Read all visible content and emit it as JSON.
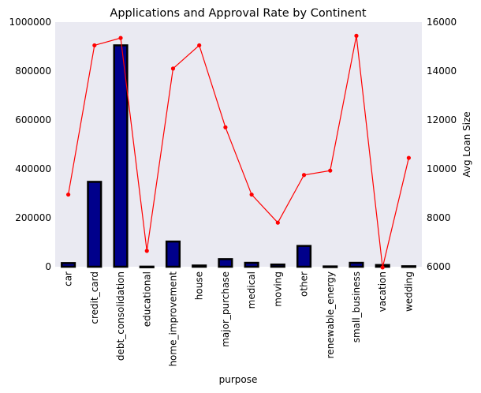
{
  "chart_data": {
    "type": "bar",
    "title": "Applications and Approval Rate by Continent",
    "xlabel": "purpose",
    "ylabel": "",
    "y2label": "Avg Loan Size",
    "categories": [
      "car",
      "credit_card",
      "debt_consolidation",
      "educational",
      "home_improvement",
      "house",
      "major_purchase",
      "medical",
      "moving",
      "other",
      "renewable_energy",
      "small_business",
      "vacation",
      "wedding"
    ],
    "ylim": [
      0,
      1000000
    ],
    "y2lim": [
      6000,
      16000
    ],
    "yticks": [
      "0",
      "200000",
      "400000",
      "600000",
      "800000",
      "1000000"
    ],
    "y2ticks": [
      "6000",
      "8000",
      "10000",
      "12000",
      "14000",
      "16000"
    ],
    "grid": false,
    "series": [
      {
        "kind": "bar",
        "axis": "left",
        "color": "#00008b",
        "values": [
          15000,
          347000,
          905000,
          400,
          103000,
          5000,
          31000,
          16000,
          9000,
          85000,
          1200,
          16000,
          7000,
          2000
        ]
      },
      {
        "kind": "line",
        "axis": "right",
        "color": "#ff0000",
        "values": [
          8950,
          15050,
          15350,
          6650,
          14100,
          15050,
          11700,
          8950,
          7800,
          9750,
          9930,
          15440,
          5970,
          10450
        ]
      }
    ],
    "colors": {
      "plot_background": "#eaeaf2",
      "bar_edge": "#000000"
    }
  }
}
